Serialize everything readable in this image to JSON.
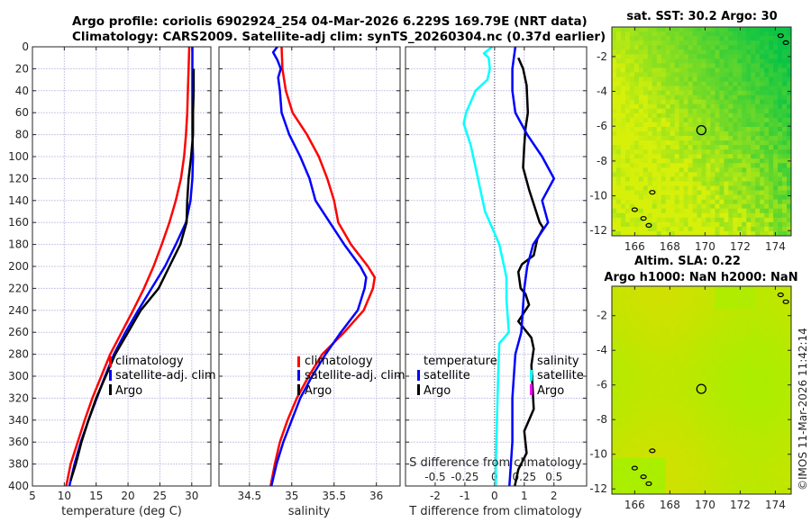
{
  "header": {
    "line1": "Argo profile: coriolis 6902924_254 04-Mar-2026 6.229S 169.79E (NRT data)",
    "line2": "Climatology: CARS2009. Satellite-adj clim: synTS_20260304.nc (0.37d earlier)"
  },
  "colors": {
    "climatology": "#ff0000",
    "satellite": "#0000ff",
    "argo": "#000000",
    "salinity_satellite": "#00ffff",
    "salinity_argo": "#ff00ff",
    "grid": "#c8c8e6"
  },
  "chart_data": [
    {
      "type": "line",
      "name": "temperature-profile",
      "xlabel": "temperature (deg C)",
      "ylabel": "",
      "xlim": [
        5,
        33
      ],
      "ylim": [
        400,
        0
      ],
      "xticks": [
        "5",
        "10",
        "15",
        "20",
        "25",
        "30"
      ],
      "yticks": [
        "0",
        "20",
        "40",
        "60",
        "80",
        "100",
        "120",
        "140",
        "160",
        "180",
        "200",
        "220",
        "240",
        "260",
        "280",
        "300",
        "320",
        "340",
        "360",
        "380",
        "400"
      ],
      "grid": true,
      "legend": {
        "position": "center-right",
        "entries": [
          "climatology",
          "satellite-adj. clim",
          "Argo"
        ]
      },
      "series": [
        {
          "name": "climatology",
          "color_key": "climatology",
          "points": [
            [
              29.6,
              0
            ],
            [
              29.5,
              20
            ],
            [
              29.4,
              40
            ],
            [
              29.3,
              60
            ],
            [
              29.1,
              80
            ],
            [
              28.8,
              100
            ],
            [
              28.3,
              120
            ],
            [
              27.5,
              140
            ],
            [
              26.5,
              160
            ],
            [
              25.3,
              180
            ],
            [
              24.0,
              200
            ],
            [
              22.5,
              220
            ],
            [
              20.8,
              240
            ],
            [
              19.0,
              260
            ],
            [
              17.2,
              280
            ],
            [
              15.8,
              300
            ],
            [
              14.4,
              320
            ],
            [
              13.2,
              340
            ],
            [
              12.1,
              360
            ],
            [
              11.0,
              380
            ],
            [
              10.3,
              400
            ]
          ]
        },
        {
          "name": "satellite-adj. clim",
          "color_key": "satellite",
          "points": [
            [
              30.1,
              0
            ],
            [
              30.1,
              20
            ],
            [
              30.1,
              40
            ],
            [
              30.1,
              60
            ],
            [
              30.1,
              80
            ],
            [
              30.2,
              100
            ],
            [
              30.1,
              120
            ],
            [
              29.8,
              140
            ],
            [
              29.1,
              160
            ],
            [
              27.5,
              180
            ],
            [
              25.8,
              200
            ],
            [
              23.7,
              220
            ],
            [
              21.6,
              240
            ],
            [
              19.6,
              260
            ],
            [
              17.8,
              280
            ],
            [
              16.4,
              300
            ],
            [
              15.1,
              320
            ],
            [
              13.8,
              340
            ],
            [
              12.6,
              360
            ],
            [
              11.6,
              380
            ],
            [
              10.8,
              400
            ]
          ]
        },
        {
          "name": "Argo",
          "color_key": "argo",
          "points": [
            [
              30.3,
              20
            ],
            [
              30.3,
              40
            ],
            [
              30.2,
              60
            ],
            [
              30.2,
              80
            ],
            [
              29.9,
              100
            ],
            [
              29.5,
              120
            ],
            [
              29.3,
              140
            ],
            [
              29.2,
              160
            ],
            [
              28.2,
              180
            ],
            [
              26.5,
              200
            ],
            [
              24.8,
              220
            ],
            [
              22.0,
              240
            ],
            [
              20.0,
              260
            ],
            [
              18.0,
              280
            ],
            [
              16.5,
              300
            ],
            [
              15.0,
              320
            ],
            [
              13.8,
              340
            ],
            [
              12.7,
              360
            ],
            [
              11.8,
              380
            ],
            [
              11.0,
              395
            ]
          ]
        }
      ]
    },
    {
      "type": "line",
      "name": "salinity-profile",
      "xlabel": "salinity",
      "xlim": [
        34.14,
        36.28
      ],
      "ylim": [
        400,
        0
      ],
      "xticks": [
        "34.5",
        "35",
        "35.5",
        "36"
      ],
      "grid": true,
      "legend": {
        "position": "center-right",
        "entries": [
          "climatology",
          "satellite-adj. clim",
          "Argo"
        ]
      },
      "series": [
        {
          "name": "climatology",
          "color_key": "climatology",
          "points": [
            [
              34.88,
              0
            ],
            [
              34.89,
              20
            ],
            [
              34.93,
              40
            ],
            [
              35.01,
              60
            ],
            [
              35.18,
              80
            ],
            [
              35.32,
              100
            ],
            [
              35.42,
              120
            ],
            [
              35.5,
              140
            ],
            [
              35.55,
              160
            ],
            [
              35.7,
              180
            ],
            [
              35.9,
              200
            ],
            [
              35.98,
              210
            ],
            [
              35.96,
              220
            ],
            [
              35.85,
              240
            ],
            [
              35.62,
              260
            ],
            [
              35.36,
              280
            ],
            [
              35.2,
              300
            ],
            [
              35.06,
              320
            ],
            [
              34.95,
              340
            ],
            [
              34.86,
              360
            ],
            [
              34.8,
              380
            ],
            [
              34.75,
              400
            ]
          ]
        },
        {
          "name": "satellite-adj. clim",
          "color_key": "satellite",
          "points": [
            [
              34.83,
              0
            ],
            [
              34.78,
              5
            ],
            [
              34.83,
              12
            ],
            [
              34.87,
              20
            ],
            [
              34.84,
              28
            ],
            [
              34.86,
              40
            ],
            [
              34.88,
              60
            ],
            [
              34.97,
              80
            ],
            [
              35.1,
              100
            ],
            [
              35.21,
              120
            ],
            [
              35.28,
              140
            ],
            [
              35.45,
              160
            ],
            [
              35.62,
              180
            ],
            [
              35.81,
              200
            ],
            [
              35.88,
              210
            ],
            [
              35.86,
              220
            ],
            [
              35.78,
              240
            ],
            [
              35.58,
              260
            ],
            [
              35.4,
              280
            ],
            [
              35.24,
              300
            ],
            [
              35.1,
              320
            ],
            [
              35.0,
              340
            ],
            [
              34.9,
              360
            ],
            [
              34.82,
              380
            ],
            [
              34.76,
              400
            ]
          ]
        }
      ]
    },
    {
      "type": "line",
      "name": "difference-profile",
      "xlabel": "T difference from climatology",
      "xlabel_top": "S difference from climatology",
      "xlim": [
        -3,
        3.1
      ],
      "xlim_salinity": [
        -0.75,
        0.775
      ],
      "ylim": [
        400,
        0
      ],
      "xticks": [
        "-2",
        "-1",
        "0",
        "1",
        "2"
      ],
      "xticks_salinity": [
        "-0.5",
        "-0.25",
        "0",
        "0.25",
        "0.5"
      ],
      "grid": true,
      "legend": {
        "temperature": {
          "title": "temperature",
          "entries": [
            "satellite",
            "Argo"
          ]
        },
        "salinity": {
          "title": "salinity",
          "entries": [
            "satellite",
            "Argo"
          ]
        }
      },
      "series": [
        {
          "name": "S satellite",
          "color_key": "salinity_satellite",
          "axis": "salinity",
          "points": [
            [
              -0.02,
              0
            ],
            [
              -0.09,
              6
            ],
            [
              -0.05,
              10
            ],
            [
              -0.04,
              20
            ],
            [
              -0.06,
              30
            ],
            [
              -0.16,
              40
            ],
            [
              -0.24,
              60
            ],
            [
              -0.26,
              70
            ],
            [
              -0.2,
              90
            ],
            [
              -0.16,
              110
            ],
            [
              -0.12,
              130
            ],
            [
              -0.08,
              150
            ],
            [
              0.0,
              170
            ],
            [
              0.04,
              180
            ],
            [
              0.08,
              200
            ],
            [
              0.1,
              210
            ],
            [
              0.1,
              230
            ],
            [
              0.12,
              260
            ],
            [
              0.04,
              270
            ],
            [
              0.03,
              300
            ],
            [
              0.02,
              340
            ],
            [
              0.01,
              380
            ],
            [
              0.01,
              400
            ]
          ]
        },
        {
          "name": "S Argo",
          "color_key": "argo",
          "axis": "salinity",
          "points": [
            [
              0.2,
              10
            ],
            [
              0.24,
              20
            ],
            [
              0.27,
              35
            ],
            [
              0.28,
              60
            ],
            [
              0.26,
              75
            ],
            [
              0.25,
              90
            ],
            [
              0.24,
              110
            ],
            [
              0.29,
              130
            ],
            [
              0.32,
              140
            ],
            [
              0.38,
              160
            ],
            [
              0.41,
              165
            ],
            [
              0.36,
              175
            ],
            [
              0.33,
              190
            ],
            [
              0.23,
              198
            ],
            [
              0.2,
              205
            ],
            [
              0.22,
              220
            ],
            [
              0.26,
              225
            ],
            [
              0.29,
              235
            ],
            [
              0.2,
              250
            ],
            [
              0.31,
              265
            ],
            [
              0.33,
              275
            ],
            [
              0.31,
              290
            ],
            [
              0.32,
              310
            ],
            [
              0.33,
              330
            ],
            [
              0.25,
              350
            ],
            [
              0.27,
              370
            ],
            [
              0.2,
              385
            ],
            [
              0.17,
              400
            ]
          ]
        },
        {
          "name": "T satellite",
          "color_key": "satellite",
          "axis": "temperature",
          "points": [
            [
              0.7,
              0
            ],
            [
              0.6,
              20
            ],
            [
              0.6,
              40
            ],
            [
              0.7,
              60
            ],
            [
              1.1,
              80
            ],
            [
              1.6,
              100
            ],
            [
              2.0,
              120
            ],
            [
              1.6,
              140
            ],
            [
              1.8,
              160
            ],
            [
              1.3,
              180
            ],
            [
              1.1,
              200
            ],
            [
              1.0,
              220
            ],
            [
              0.9,
              260
            ],
            [
              0.7,
              280
            ],
            [
              0.6,
              320
            ],
            [
              0.6,
              360
            ],
            [
              0.5,
              400
            ]
          ]
        }
      ]
    }
  ],
  "maps": [
    {
      "name": "sst-map",
      "title": "sat. SST: 30.2 Argo: 30",
      "xticks": [
        "166",
        "168",
        "170",
        "172",
        "174"
      ],
      "yticks": [
        "-2",
        "-4",
        "-6",
        "-8",
        "-10",
        "-12"
      ],
      "lon_range": [
        164.7,
        174.9
      ],
      "lat_range": [
        -12.3,
        -0.3
      ],
      "marker": {
        "lon": 169.79,
        "lat": -6.229
      }
    },
    {
      "name": "sla-map",
      "title_line1": "Altim. SLA: 0.22",
      "title_line2": "Argo h1000: NaN h2000: NaN",
      "xticks": [
        "166",
        "168",
        "170",
        "172",
        "174"
      ],
      "yticks": [
        "-2",
        "-4",
        "-6",
        "-8",
        "-10",
        "-12"
      ],
      "lon_range": [
        164.7,
        174.9
      ],
      "lat_range": [
        -12.3,
        -0.3
      ],
      "marker": {
        "lon": 169.79,
        "lat": -6.229
      }
    }
  ],
  "footer": {
    "copyright": "©IMOS 11-Mar-2026 11:42:14"
  }
}
